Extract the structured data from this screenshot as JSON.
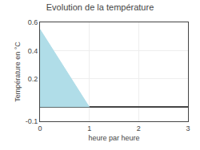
{
  "chart_data": {
    "type": "area",
    "title": "Evolution de la température",
    "xlabel": "heure par heure",
    "ylabel": "Température en °C",
    "x": [
      0,
      1
    ],
    "values": [
      0.55,
      0.0
    ],
    "color": "#b0dde8",
    "xlim": [
      0,
      3
    ],
    "xticks": [
      0,
      1,
      2,
      3
    ],
    "ylim": [
      -0.1,
      0.6
    ],
    "yticks": [
      -0.1,
      0.2,
      0.4,
      0.6
    ],
    "grid": true
  }
}
